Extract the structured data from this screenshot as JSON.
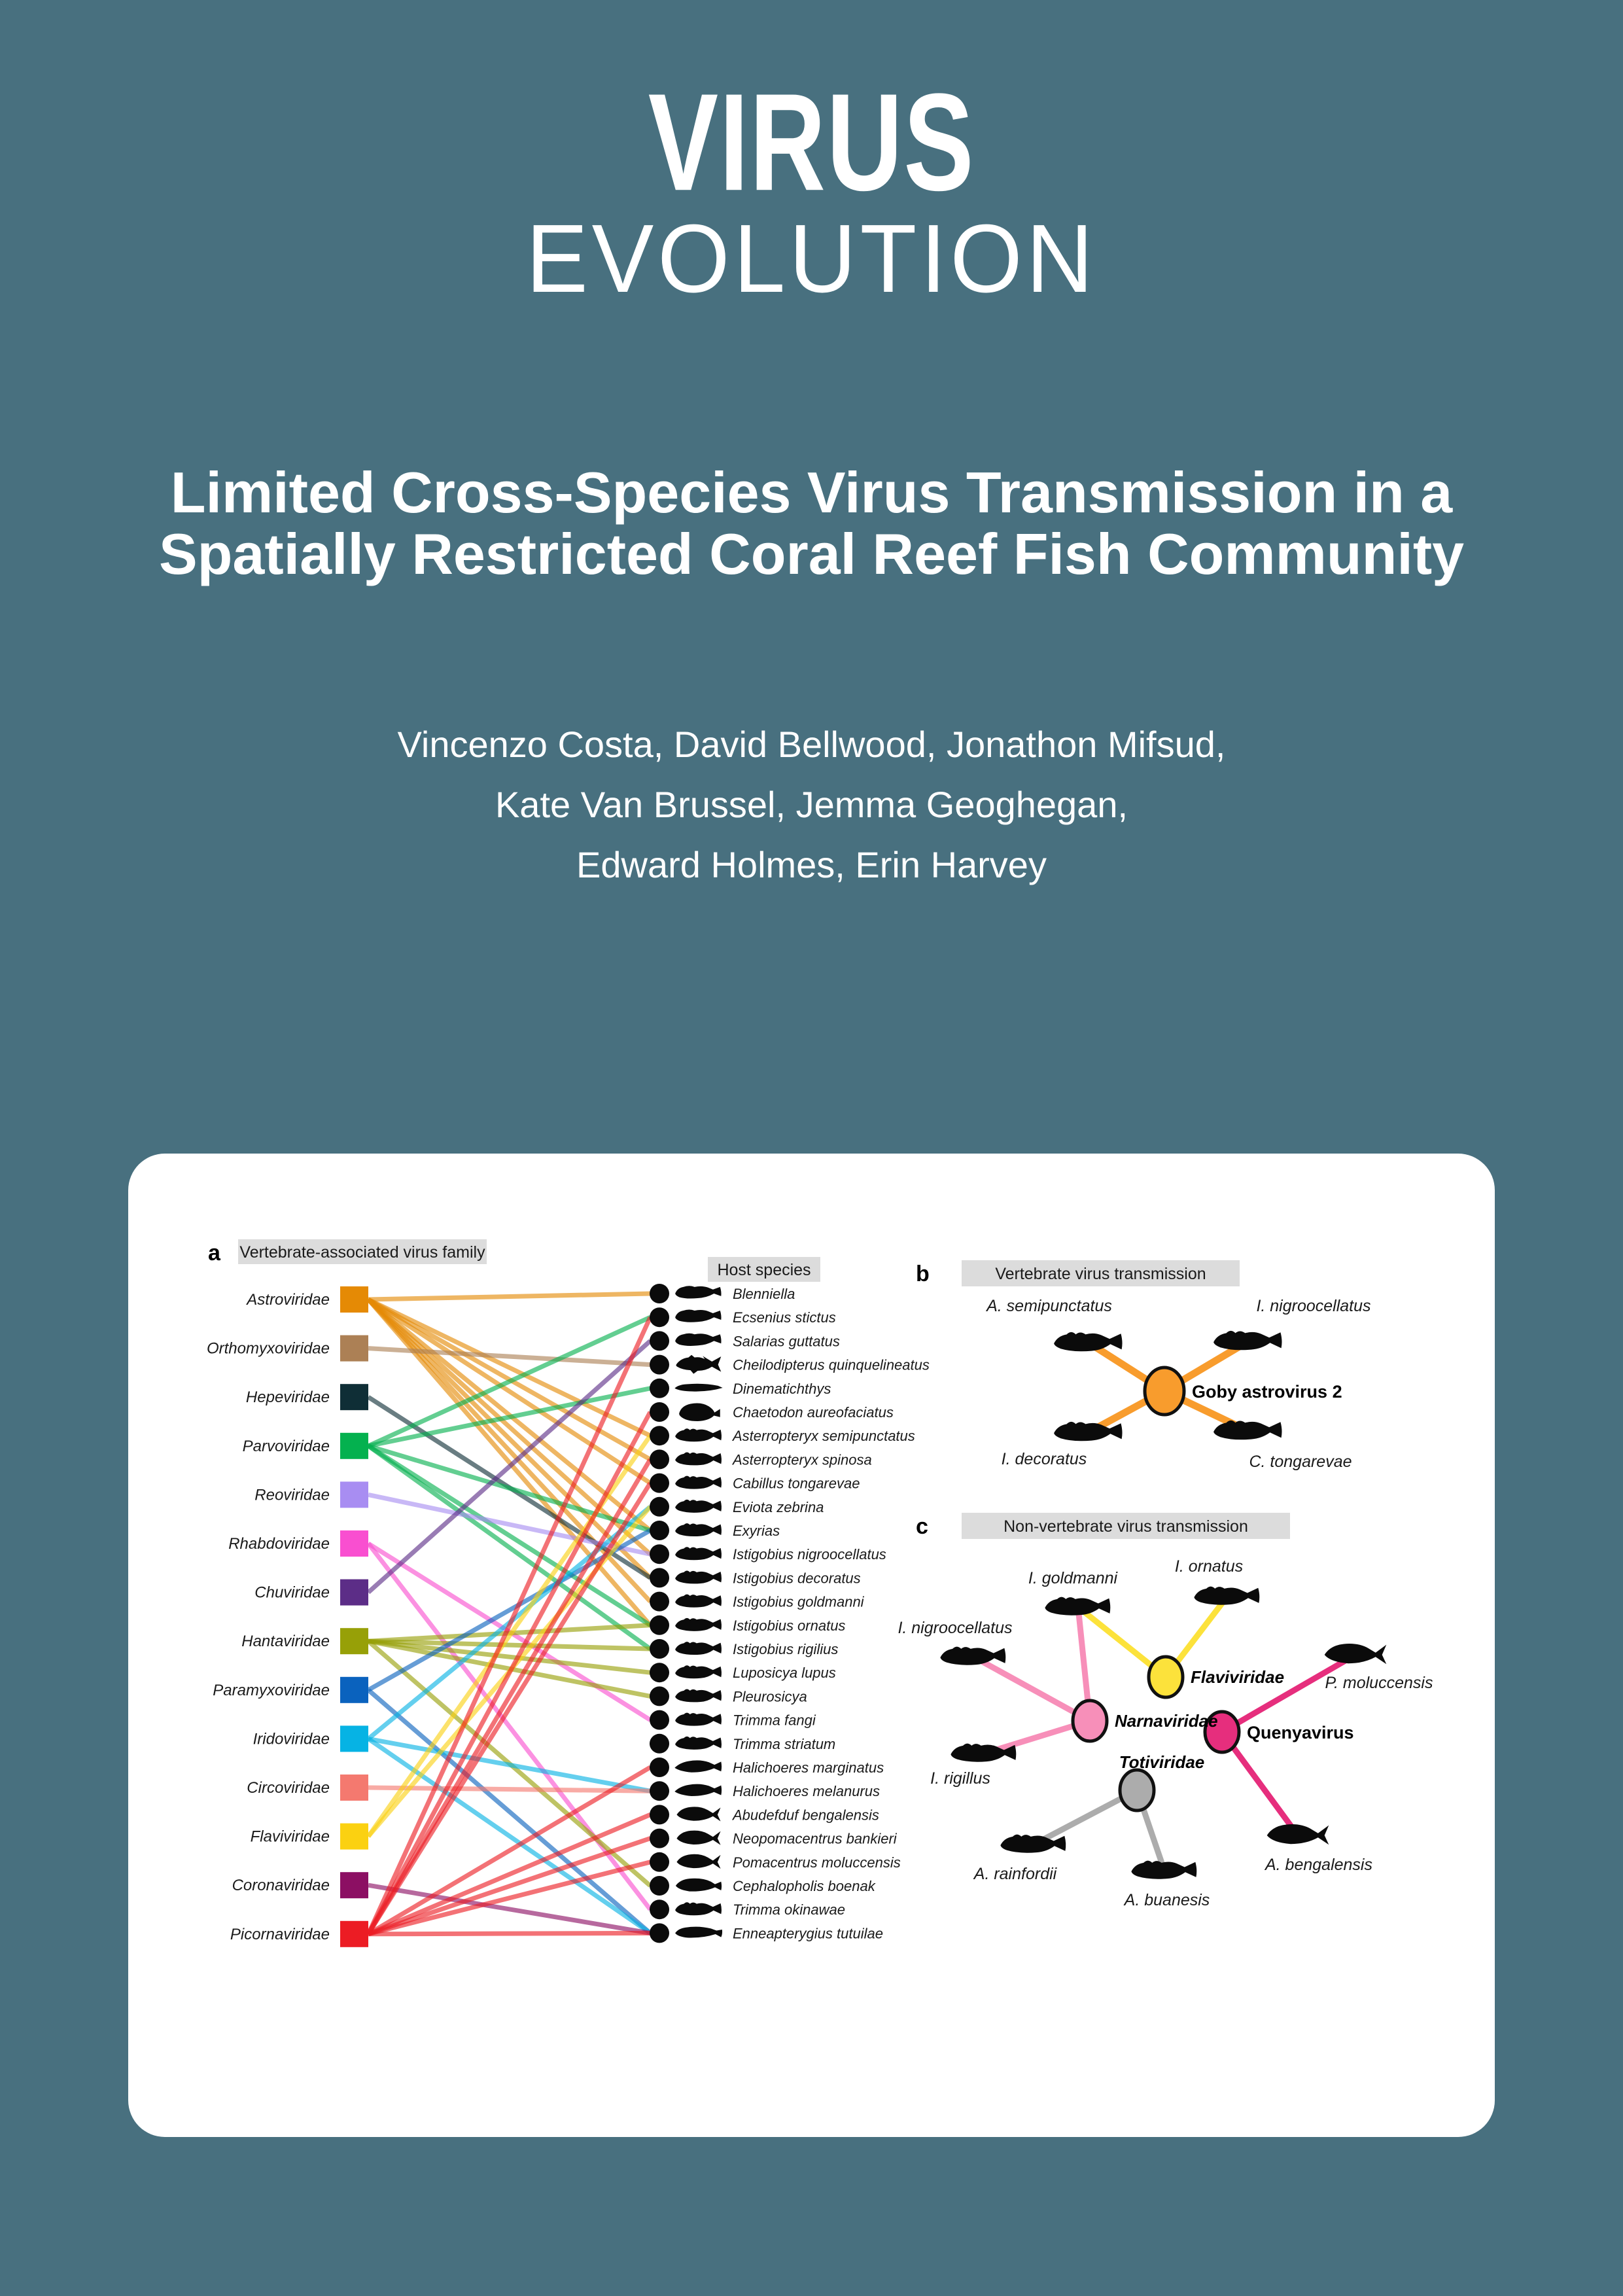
{
  "page": {
    "background_color": "#48707F",
    "card_color": "#FFFFFF",
    "header_box_color": "#DCDCDC"
  },
  "journal": {
    "line1": "VIRUS",
    "line2": "EVOLUTION"
  },
  "title": {
    "line1": "Limited Cross-Species Virus Transmission in a",
    "line2": "Spatially Restricted Coral Reef Fish Community"
  },
  "authors": {
    "line1": "Vincenzo Costa, David Bellwood, Jonathon Mifsud,",
    "line2": "Kate Van Brussel, Jemma Geoghegan,",
    "line3": "Edward Holmes, Erin Harvey"
  },
  "figure": {
    "panel_a": {
      "label": "a",
      "header": "Vertebrate-associated virus family",
      "host_header": "Host species",
      "families": [
        {
          "name": "Astroviridae",
          "color": "#E58A05"
        },
        {
          "name": "Orthomyxoviridae",
          "color": "#AC8055"
        },
        {
          "name": "Hepeviridae",
          "color": "#0F2E36"
        },
        {
          "name": "Parvoviridae",
          "color": "#04B14F"
        },
        {
          "name": "Reoviridae",
          "color": "#A88DF2"
        },
        {
          "name": "Rhabdoviridae",
          "color": "#F94FD0"
        },
        {
          "name": "Chuviridae",
          "color": "#5C2D87"
        },
        {
          "name": "Hantaviridae",
          "color": "#97A007"
        },
        {
          "name": "Paramyxoviridae",
          "color": "#0A62BE"
        },
        {
          "name": "Iridoviridae",
          "color": "#06B3E4"
        },
        {
          "name": "Circoviridae",
          "color": "#F4796F"
        },
        {
          "name": "Flaviviridae",
          "color": "#FBD111"
        },
        {
          "name": "Coronaviridae",
          "color": "#8C0F63"
        },
        {
          "name": "Picornaviridae",
          "color": "#EC1C24"
        }
      ],
      "species": [
        {
          "name": "Blenniella",
          "fish": "blenny"
        },
        {
          "name": "Ecsenius stictus",
          "fish": "blenny"
        },
        {
          "name": "Salarias guttatus",
          "fish": "blenny"
        },
        {
          "name": "Cheilodipterus quinquelineatus",
          "fish": "cardinal"
        },
        {
          "name": "Dinematichthys",
          "fish": "slender"
        },
        {
          "name": "Chaetodon aureofaciatus",
          "fish": "deep"
        },
        {
          "name": "Asterropteryx semipunctatus",
          "fish": "goby"
        },
        {
          "name": "Asterropteryx spinosa",
          "fish": "goby"
        },
        {
          "name": "Cabillus tongarevae",
          "fish": "goby"
        },
        {
          "name": "Eviota zebrina",
          "fish": "goby"
        },
        {
          "name": "Exyrias",
          "fish": "goby"
        },
        {
          "name": "Istigobius nigroocellatus",
          "fish": "goby"
        },
        {
          "name": "Istigobius decoratus",
          "fish": "goby"
        },
        {
          "name": "Istigobius goldmanni",
          "fish": "goby"
        },
        {
          "name": "Istigobius ornatus",
          "fish": "goby"
        },
        {
          "name": "Istigobius rigilius",
          "fish": "goby"
        },
        {
          "name": "Luposicya lupus",
          "fish": "goby"
        },
        {
          "name": "Pleurosicya",
          "fish": "goby"
        },
        {
          "name": "Trimma fangi",
          "fish": "goby"
        },
        {
          "name": "Trimma striatum",
          "fish": "goby"
        },
        {
          "name": "Halichoeres marginatus",
          "fish": "wrasse"
        },
        {
          "name": "Halichoeres melanurus",
          "fish": "wrasse"
        },
        {
          "name": "Abudefduf bengalensis",
          "fish": "damsel"
        },
        {
          "name": "Neopomacentrus bankieri",
          "fish": "damsel"
        },
        {
          "name": "Pomacentrus moluccensis",
          "fish": "damsel"
        },
        {
          "name": "Cephalopholis boenak",
          "fish": "grouper"
        },
        {
          "name": "Trimma okinawae",
          "fish": "goby"
        },
        {
          "name": "Enneapterygius tutuilae",
          "fish": "triplefin"
        }
      ],
      "edges": [
        [
          0,
          0
        ],
        [
          0,
          6
        ],
        [
          0,
          7
        ],
        [
          0,
          8
        ],
        [
          0,
          10
        ],
        [
          0,
          11
        ],
        [
          0,
          12
        ],
        [
          0,
          13
        ],
        [
          0,
          14
        ],
        [
          1,
          3
        ],
        [
          2,
          12
        ],
        [
          3,
          1
        ],
        [
          3,
          4
        ],
        [
          3,
          10
        ],
        [
          3,
          14
        ],
        [
          3,
          15
        ],
        [
          4,
          11
        ],
        [
          5,
          18
        ],
        [
          5,
          26
        ],
        [
          6,
          2
        ],
        [
          7,
          14
        ],
        [
          7,
          15
        ],
        [
          7,
          16
        ],
        [
          7,
          17
        ],
        [
          7,
          25
        ],
        [
          8,
          10
        ],
        [
          8,
          27
        ],
        [
          9,
          9
        ],
        [
          9,
          21
        ],
        [
          9,
          27
        ],
        [
          10,
          21
        ],
        [
          11,
          6
        ],
        [
          11,
          9
        ],
        [
          12,
          27
        ],
        [
          13,
          1
        ],
        [
          13,
          5
        ],
        [
          13,
          7
        ],
        [
          13,
          8
        ],
        [
          13,
          20
        ],
        [
          13,
          22
        ],
        [
          13,
          23
        ],
        [
          13,
          24
        ],
        [
          13,
          27
        ]
      ]
    },
    "panel_b": {
      "label": "b",
      "header": "Vertebrate virus transmission",
      "virus": {
        "name": "Goby astrovirus 2",
        "color": "#F89C2D"
      },
      "hosts": [
        {
          "name": "A. semipunctatus",
          "fish": "goby"
        },
        {
          "name": "I. nigroocellatus",
          "fish": "goby"
        },
        {
          "name": "I. decoratus",
          "fish": "goby"
        },
        {
          "name": "C. tongarevae",
          "fish": "goby"
        }
      ],
      "edges": [
        [
          0
        ],
        [
          1
        ],
        [
          2
        ],
        [
          3
        ]
      ]
    },
    "panel_c": {
      "label": "c",
      "header": "Non-vertebrate virus transmission",
      "nodes": [
        {
          "name": "Flaviviridae",
          "color": "#FCE23B",
          "italic": true
        },
        {
          "name": "Narnaviridae",
          "color": "#F78FB9",
          "italic": true
        },
        {
          "name": "Quenyavirus",
          "color": "#E62E7D",
          "italic": false
        },
        {
          "name": "Totiviridae",
          "color": "#ACACAC",
          "italic": true
        }
      ],
      "hosts": [
        {
          "name": "I. ornatus",
          "fish": "goby"
        },
        {
          "name": "I. goldmanni",
          "fish": "goby"
        },
        {
          "name": "I. nigroocellatus",
          "fish": "goby"
        },
        {
          "name": "P. moluccensis",
          "fish": "damsel"
        },
        {
          "name": "I. rigillus",
          "fish": "goby"
        },
        {
          "name": "A. rainfordii",
          "fish": "goby"
        },
        {
          "name": "A. buanesis",
          "fish": "goby"
        },
        {
          "name": "A. bengalensis",
          "fish": "damsel"
        }
      ],
      "edges": [
        [
          0,
          1
        ],
        [
          0,
          0
        ],
        [
          1,
          2
        ],
        [
          1,
          1
        ],
        [
          1,
          4
        ],
        [
          2,
          3
        ],
        [
          2,
          7
        ],
        [
          3,
          5
        ],
        [
          3,
          6
        ]
      ]
    }
  }
}
